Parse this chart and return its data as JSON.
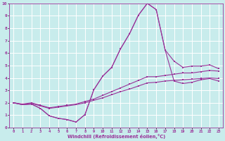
{
  "xlabel": "Windchill (Refroidissement éolien,°C)",
  "bg_color": "#c8ecec",
  "line_color": "#993399",
  "grid_color": "#ffffff",
  "xlim": [
    -0.5,
    23.5
  ],
  "ylim": [
    0,
    10
  ],
  "xticks": [
    0,
    1,
    2,
    3,
    4,
    5,
    6,
    7,
    8,
    9,
    10,
    11,
    12,
    13,
    14,
    15,
    16,
    17,
    18,
    19,
    20,
    21,
    22,
    23
  ],
  "yticks": [
    0,
    1,
    2,
    3,
    4,
    5,
    6,
    7,
    8,
    9,
    10
  ],
  "line1_x": [
    0,
    1,
    2,
    3,
    4,
    5,
    6,
    7,
    8,
    9,
    10,
    11,
    12,
    13,
    14,
    15,
    16,
    17,
    18,
    19,
    20,
    21,
    22,
    23
  ],
  "line1_y": [
    2.0,
    1.85,
    1.9,
    1.55,
    0.95,
    0.75,
    0.65,
    0.45,
    1.05,
    3.05,
    4.15,
    4.85,
    6.35,
    7.55,
    9.05,
    10.0,
    9.5,
    6.25,
    5.35,
    4.85,
    4.95,
    4.95,
    5.05,
    4.75
  ],
  "line2_x": [
    0,
    1,
    2,
    3,
    4,
    5,
    6,
    7,
    8,
    9,
    10,
    11,
    12,
    13,
    14,
    15,
    16,
    17,
    18,
    19,
    20,
    21,
    22,
    23
  ],
  "line2_y": [
    2.0,
    1.85,
    1.9,
    1.55,
    0.95,
    0.75,
    0.65,
    0.45,
    1.05,
    3.05,
    4.15,
    4.85,
    6.35,
    7.55,
    9.05,
    10.0,
    9.5,
    6.25,
    3.75,
    3.55,
    3.65,
    3.85,
    3.95,
    3.75
  ],
  "line3_x": [
    0,
    1,
    2,
    3,
    4,
    5,
    6,
    7,
    8,
    9,
    10,
    11,
    12,
    13,
    14,
    15,
    16,
    17,
    18,
    19,
    20,
    21,
    22,
    23
  ],
  "line3_y": [
    2.0,
    1.9,
    2.0,
    1.8,
    1.6,
    1.7,
    1.8,
    1.9,
    2.1,
    2.3,
    2.6,
    2.9,
    3.2,
    3.5,
    3.8,
    4.1,
    4.1,
    4.2,
    4.3,
    4.4,
    4.4,
    4.5,
    4.6,
    4.55
  ],
  "line4_x": [
    0,
    1,
    2,
    3,
    4,
    5,
    6,
    7,
    8,
    9,
    10,
    11,
    12,
    13,
    14,
    15,
    16,
    17,
    18,
    19,
    20,
    21,
    22,
    23
  ],
  "line4_y": [
    2.0,
    1.85,
    1.95,
    1.75,
    1.55,
    1.65,
    1.75,
    1.85,
    2.0,
    2.2,
    2.4,
    2.65,
    2.9,
    3.1,
    3.35,
    3.6,
    3.65,
    3.75,
    3.8,
    3.85,
    3.9,
    3.95,
    4.0,
    3.95
  ]
}
